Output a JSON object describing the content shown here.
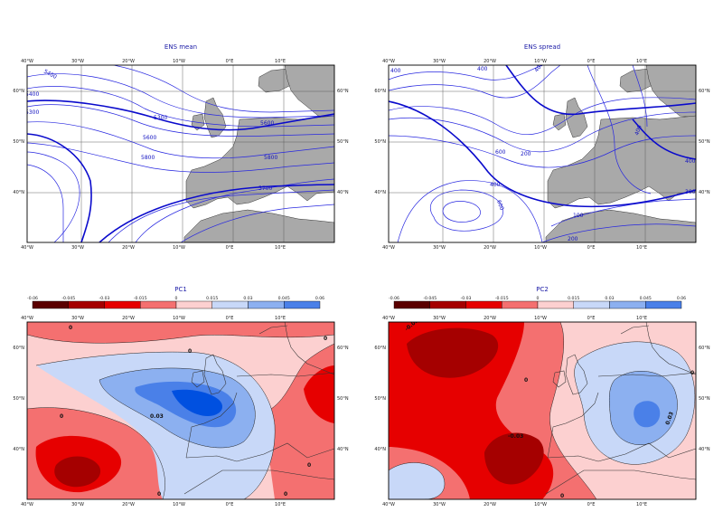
{
  "chart_data": [
    {
      "type": "contour",
      "title": "ENS mean",
      "x_ticks": [
        "40°W",
        "30°W",
        "20°W",
        "10°W",
        "0°E",
        "10°E"
      ],
      "y_ticks": [
        "60°N",
        "50°N",
        "40°N"
      ],
      "grid": true,
      "contour_labels": [
        "5400",
        "5400",
        "5300",
        "5300",
        "5600",
        "5600",
        "5700",
        "5800",
        "5800"
      ],
      "colors": {
        "line": "#1515d0",
        "land": "#a9a9a9"
      }
    },
    {
      "type": "contour",
      "title": "ENS spread",
      "x_ticks": [
        "40°W",
        "30°W",
        "20°W",
        "10°W",
        "0°E",
        "10°E"
      ],
      "y_ticks": [
        "60°N",
        "50°N",
        "40°N"
      ],
      "grid": true,
      "contour_labels": [
        "400",
        "400",
        "400",
        "600",
        "200",
        "400",
        "600",
        "400",
        "300",
        "100",
        "400",
        "200"
      ],
      "colors": {
        "line": "#1515d0",
        "land": "#a9a9a9"
      }
    },
    {
      "type": "heatmap",
      "title": "PC1",
      "x_ticks": [
        "40°W",
        "30°W",
        "20°W",
        "10°W",
        "0°E",
        "10°E"
      ],
      "y_ticks": [
        "60°N",
        "50°N",
        "40°N"
      ],
      "colorbar_ticks": [
        "-0.06",
        "-0.045",
        "-0.03",
        "-0.015",
        "0",
        "0.015",
        "0.03",
        "0.045",
        "0.06"
      ],
      "colorbar_colors": [
        "#5a0000",
        "#a50000",
        "#e60000",
        "#f47070",
        "#fcd0d0",
        "#c8d8f8",
        "#8cb0f0",
        "#4a80e8",
        "#0050e0"
      ],
      "contour_labels": [
        "0",
        "0",
        "0",
        "0",
        "0",
        "0",
        "0.03",
        "0"
      ]
    },
    {
      "type": "heatmap",
      "title": "PC2",
      "x_ticks": [
        "40°W",
        "30°W",
        "20°W",
        "10°W",
        "0°E",
        "10°E"
      ],
      "y_ticks": [
        "60°N",
        "50°N",
        "40°N"
      ],
      "colorbar_ticks": [
        "-0.06",
        "-0.045",
        "-0.03",
        "-0.015",
        "0",
        "0.015",
        "0.03",
        "0.045",
        "0.06"
      ],
      "colorbar_colors": [
        "#5a0000",
        "#a50000",
        "#e60000",
        "#f47070",
        "#fcd0d0",
        "#c8d8f8",
        "#8cb0f0",
        "#4a80e8",
        "#0050e0"
      ],
      "contour_labels": [
        "-0.03",
        "0",
        "-0.03",
        "0",
        "0.03",
        "0"
      ]
    }
  ]
}
